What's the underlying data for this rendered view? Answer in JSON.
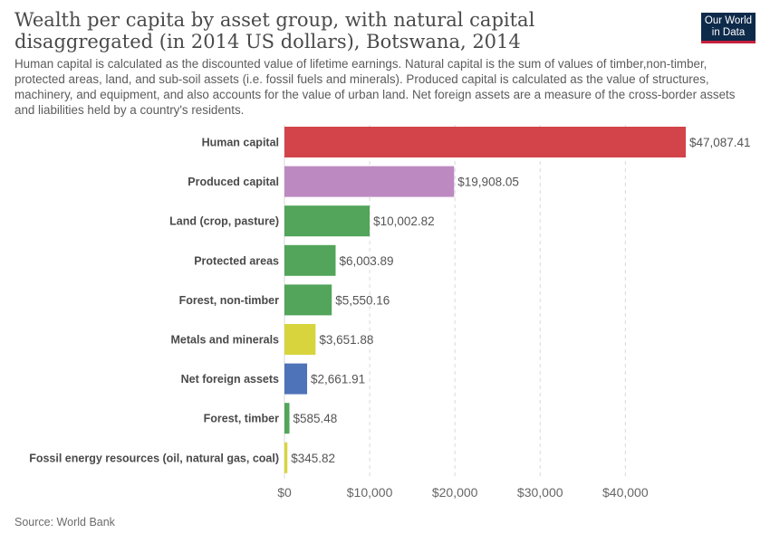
{
  "header": {
    "title": "Wealth per capita by asset group, with natural capital disaggregated (in 2014 US dollars), Botswana, 2014",
    "subtitle": "Human capital is calculated as the discounted value of lifetime earnings. Natural capital is the sum of values of timber,non-timber, protected areas, land, and sub-soil assets (i.e. fossil fuels and minerals). Produced capital is calculated as the value of structures, machinery, and equipment, and also accounts for the value of urban land. Net foreign assets are a measure of the cross-border assets and liabilities held by a country's residents.",
    "logo_line1": "Our World",
    "logo_line2": "in Data"
  },
  "footer": {
    "source": "Source: World Bank"
  },
  "chart_data": {
    "type": "bar",
    "orientation": "horizontal",
    "categories": [
      "Human capital",
      "Produced capital",
      "Land (crop, pasture)",
      "Protected areas",
      "Forest, non-timber",
      "Metals and minerals",
      "Net foreign assets",
      "Forest, timber",
      "Fossil energy resources (oil, natural gas, coal)"
    ],
    "values": [
      47087.41,
      19908.05,
      10002.82,
      6003.89,
      5550.16,
      3651.88,
      2661.91,
      585.48,
      345.82
    ],
    "value_labels": [
      "$47,087.41",
      "$19,908.05",
      "$10,002.82",
      "$6,003.89",
      "$5,550.16",
      "$3,651.88",
      "$2,661.91",
      "$585.48",
      "$345.82"
    ],
    "colors": [
      "#d2444a",
      "#bc8ac0",
      "#52a55a",
      "#52a55a",
      "#52a55a",
      "#d8d43e",
      "#4f73b8",
      "#52a55a",
      "#d8d43e"
    ],
    "xlim": [
      0,
      47087.41
    ],
    "x_ticks": [
      0,
      10000,
      20000,
      30000,
      40000
    ],
    "x_tick_labels": [
      "$0",
      "$10,000",
      "$20,000",
      "$30,000",
      "$40,000"
    ],
    "grid": "vertical-dashed",
    "legend": "none"
  }
}
